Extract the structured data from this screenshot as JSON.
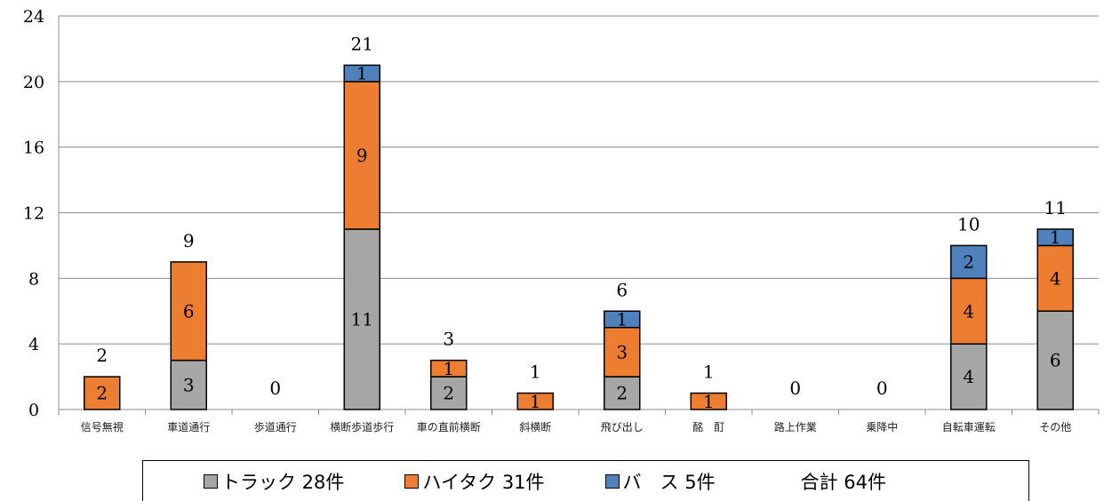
{
  "chart_data": {
    "type": "bar",
    "stacked": true,
    "categories": [
      "信号無視",
      "車道通行",
      "歩道通行",
      "横断歩道歩行",
      "車の直前横断",
      "斜横断",
      "飛び出し",
      "酩　酊",
      "路上作業",
      "乗降中",
      "自転車運転",
      "その他"
    ],
    "series": [
      {
        "name": "トラック 28件",
        "color": "#a6a6a6",
        "values": [
          0,
          3,
          0,
          11,
          2,
          0,
          2,
          0,
          0,
          0,
          4,
          6
        ]
      },
      {
        "name": "ハイタク 31件",
        "color": "#ed7d31",
        "values": [
          2,
          6,
          0,
          9,
          1,
          1,
          3,
          1,
          0,
          0,
          4,
          4
        ]
      },
      {
        "name": "バ　ス 5件",
        "color": "#4f81bd",
        "values": [
          0,
          0,
          0,
          1,
          0,
          0,
          1,
          0,
          0,
          0,
          2,
          1
        ]
      }
    ],
    "totals": [
      2,
      9,
      0,
      21,
      3,
      1,
      6,
      1,
      0,
      0,
      10,
      11
    ],
    "total_label": "合計 64件",
    "ylim": [
      0,
      24
    ],
    "yticks": [
      0,
      4,
      8,
      12,
      16,
      20,
      24
    ],
    "grid": true,
    "legend_position": "bottom"
  }
}
